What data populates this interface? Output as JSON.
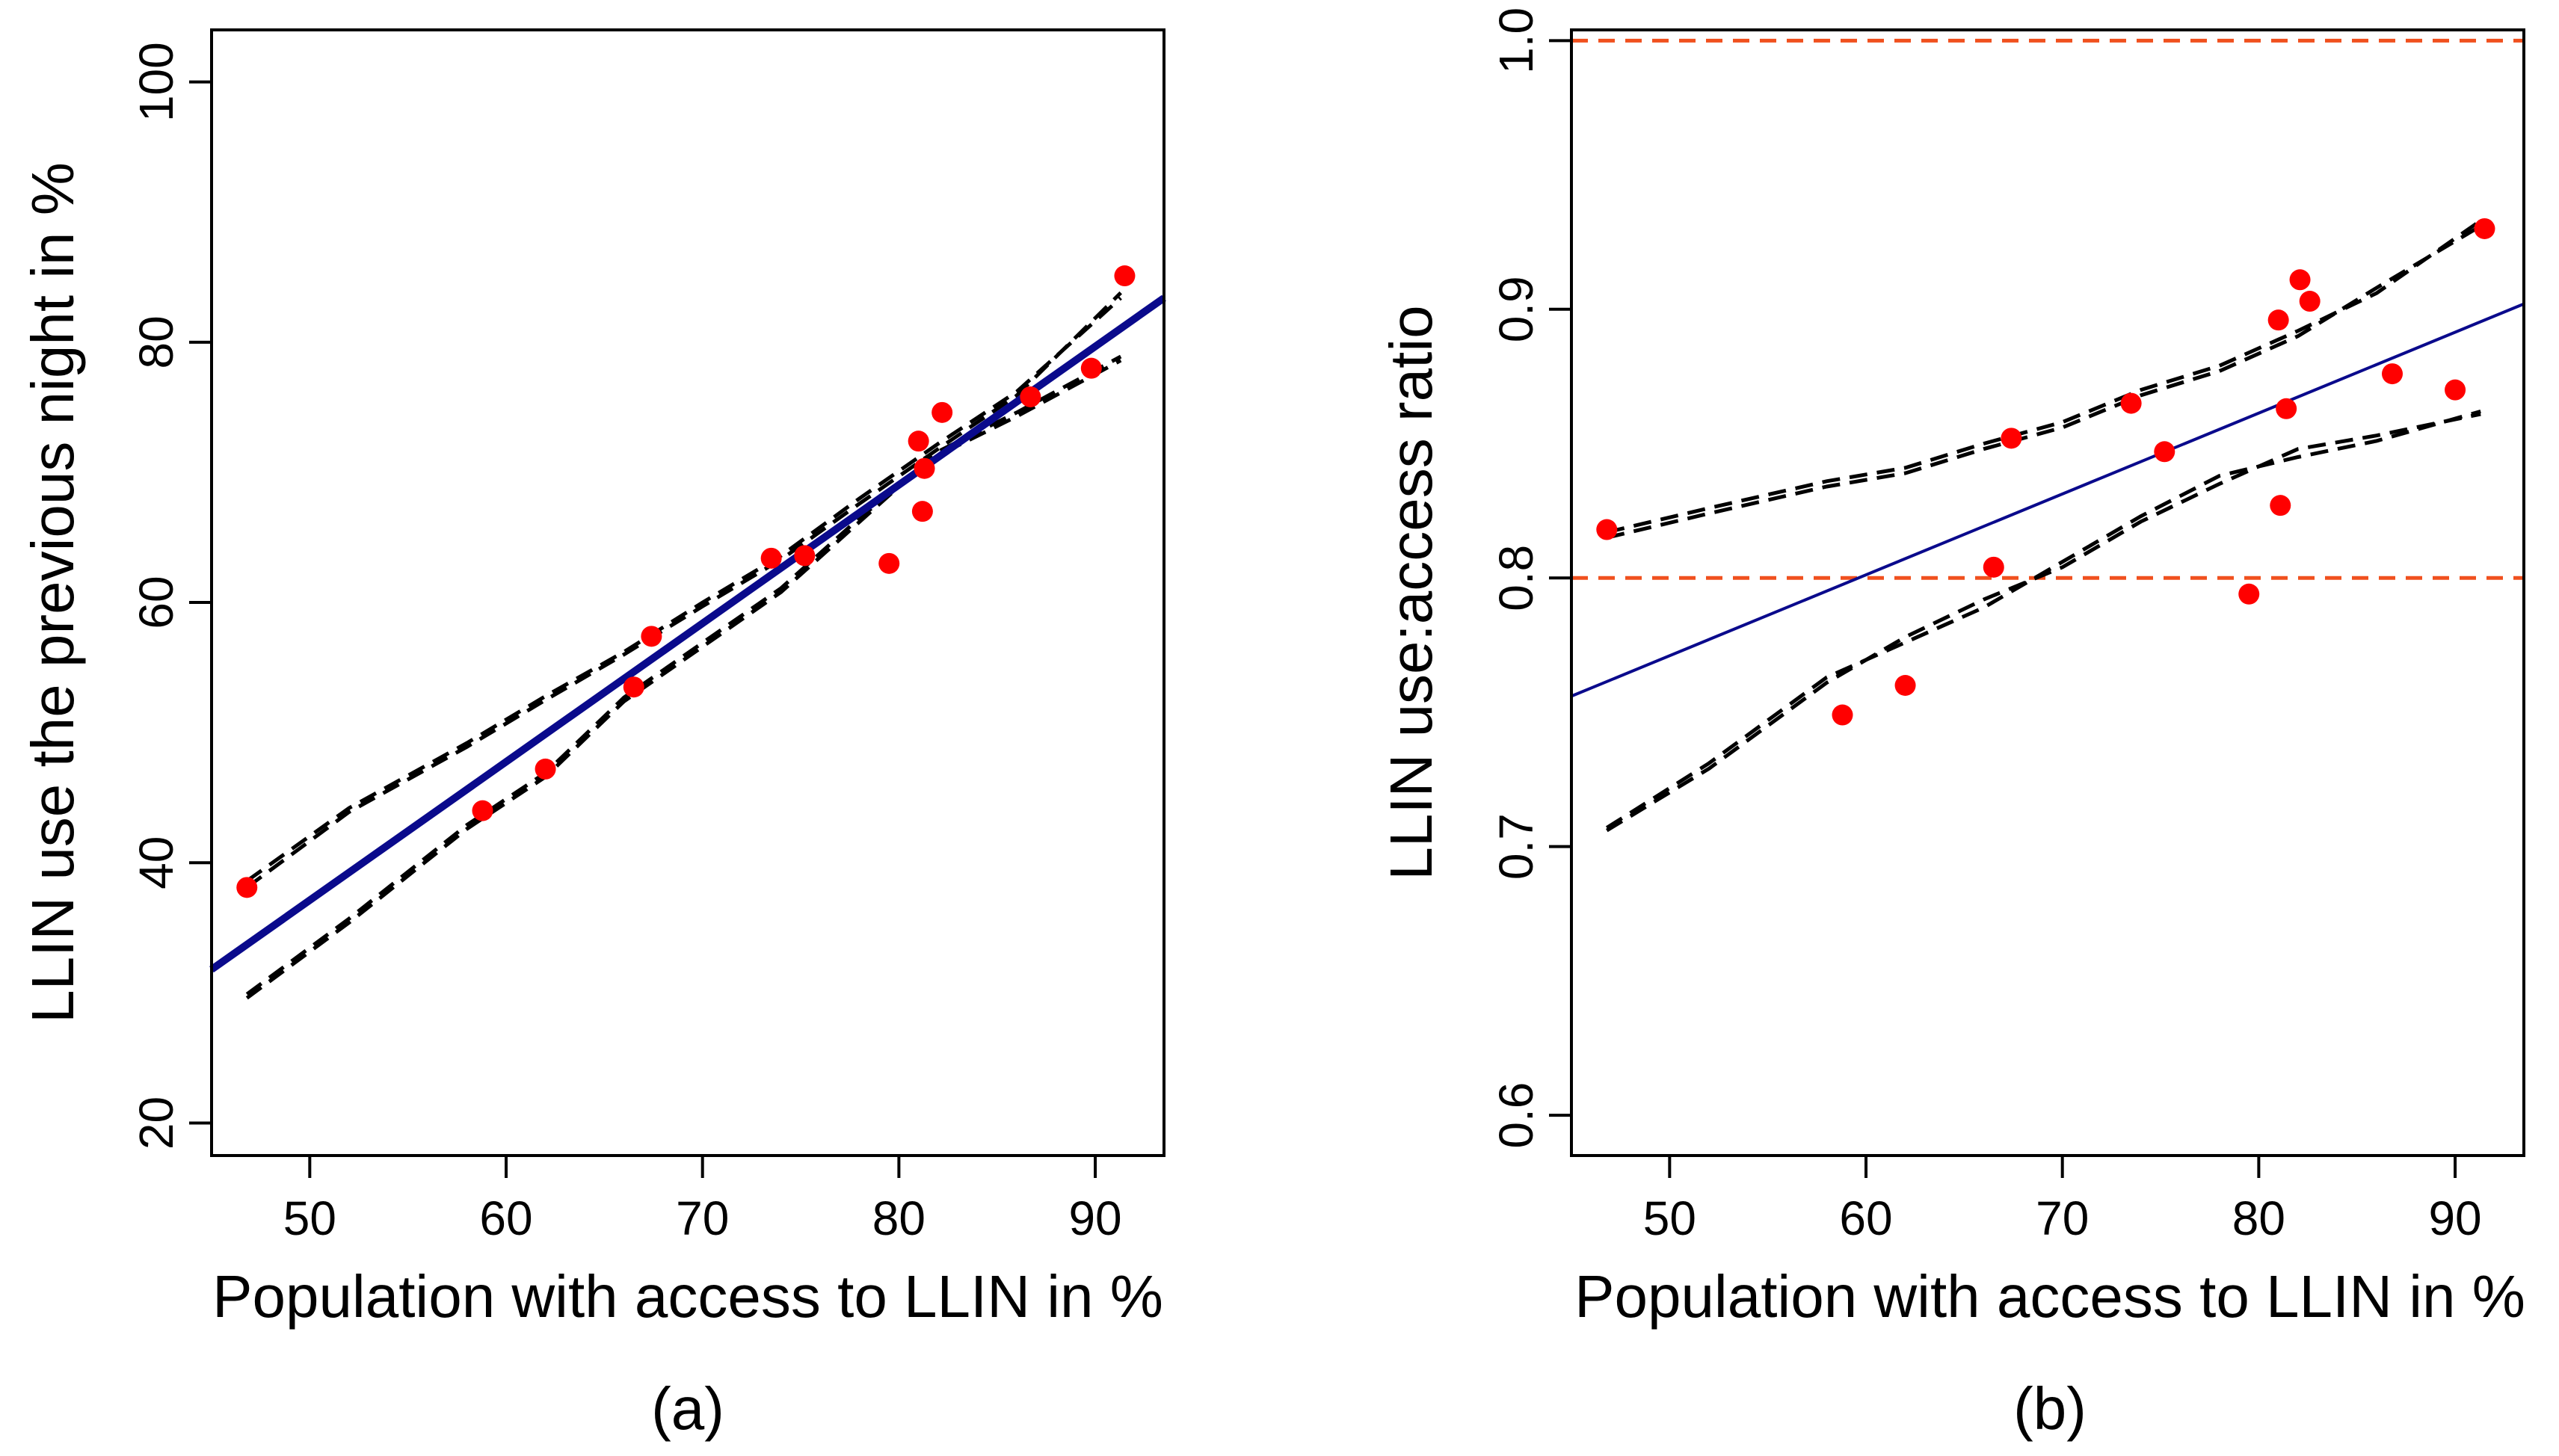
{
  "colors": {
    "points": "#ff0000",
    "fit_line": "#0a0a8c",
    "confidence_band": "#000000",
    "reference_line": "#f0501e",
    "axes": "#000000"
  },
  "chart_data": [
    {
      "type": "scatter",
      "panel_label": "(a)",
      "xlabel": "Population with access to LLIN in %",
      "ylabel": "LLIN use the previous night in %",
      "xlim": [
        45,
        93.5
      ],
      "ylim": [
        17.5,
        104
      ],
      "xticks": [
        50,
        60,
        70,
        80,
        90
      ],
      "yticks": [
        20,
        40,
        60,
        80,
        100
      ],
      "x_tick_labels": [
        "50",
        "60",
        "70",
        "80",
        "90"
      ],
      "y_tick_labels": [
        "20",
        "40",
        "60",
        "80",
        "100"
      ],
      "points": [
        {
          "x": 46.8,
          "y": 38.1
        },
        {
          "x": 58.8,
          "y": 44.0
        },
        {
          "x": 62.0,
          "y": 47.2
        },
        {
          "x": 66.5,
          "y": 53.5
        },
        {
          "x": 67.4,
          "y": 57.4
        },
        {
          "x": 73.5,
          "y": 63.4
        },
        {
          "x": 75.2,
          "y": 63.6
        },
        {
          "x": 79.5,
          "y": 63.0
        },
        {
          "x": 81.0,
          "y": 72.4
        },
        {
          "x": 81.2,
          "y": 67.0
        },
        {
          "x": 81.3,
          "y": 70.3
        },
        {
          "x": 82.2,
          "y": 74.6
        },
        {
          "x": 86.7,
          "y": 75.8
        },
        {
          "x": 89.8,
          "y": 78.0
        },
        {
          "x": 91.5,
          "y": 85.1
        }
      ],
      "fit_line": {
        "x": [
          45,
          93.5
        ],
        "y": [
          31.8,
          83.4
        ]
      },
      "confidence_bands": [
        {
          "x": [
            46.8,
            52,
            58,
            62,
            66,
            70,
            74,
            78,
            82,
            86,
            91.3
          ],
          "y": [
            38.6,
            44.2,
            49.2,
            52.8,
            56.2,
            60.0,
            63.6,
            68.0,
            72.2,
            76.2,
            83.4
          ]
        },
        {
          "x": [
            46.8,
            52,
            58,
            62,
            66,
            70,
            74,
            78,
            82,
            86,
            91.3
          ],
          "y": [
            38.1,
            43.9,
            48.9,
            52.5,
            56.0,
            59.7,
            63.3,
            67.6,
            71.8,
            75.9,
            83.8
          ]
        },
        {
          "x": [
            46.8,
            52,
            58,
            62,
            66,
            70,
            74,
            78,
            82,
            86,
            91.3
          ],
          "y": [
            29.6,
            35.4,
            42.6,
            46.6,
            52.4,
            56.6,
            60.8,
            66.2,
            71.6,
            74.6,
            78.9
          ]
        },
        {
          "x": [
            46.8,
            52,
            58,
            62,
            66,
            70,
            74,
            78,
            82,
            86,
            91.3
          ],
          "y": [
            29.9,
            35.7,
            42.9,
            46.9,
            52.7,
            56.9,
            61.1,
            66.5,
            71.3,
            74.3,
            78.6
          ]
        }
      ],
      "reference_lines": []
    },
    {
      "type": "scatter",
      "panel_label": "(b)",
      "xlabel": "Population with access to LLIN in %",
      "ylabel": "LLIN use:access ratio",
      "xlim": [
        45,
        93.5
      ],
      "ylim": [
        0.585,
        1.004
      ],
      "xticks": [
        50,
        60,
        70,
        80,
        90
      ],
      "yticks": [
        0.6,
        0.7,
        0.8,
        0.9,
        1.0
      ],
      "x_tick_labels": [
        "50",
        "60",
        "70",
        "80",
        "90"
      ],
      "y_tick_labels": [
        "0.6",
        "0.7",
        "0.8",
        "0.9",
        "1.0"
      ],
      "points": [
        {
          "x": 46.8,
          "y": 0.818
        },
        {
          "x": 58.8,
          "y": 0.749
        },
        {
          "x": 62.0,
          "y": 0.76
        },
        {
          "x": 66.5,
          "y": 0.804
        },
        {
          "x": 67.4,
          "y": 0.852
        },
        {
          "x": 73.5,
          "y": 0.865
        },
        {
          "x": 75.2,
          "y": 0.847
        },
        {
          "x": 79.5,
          "y": 0.794
        },
        {
          "x": 81.0,
          "y": 0.896
        },
        {
          "x": 81.1,
          "y": 0.827
        },
        {
          "x": 81.4,
          "y": 0.863
        },
        {
          "x": 82.1,
          "y": 0.911
        },
        {
          "x": 82.6,
          "y": 0.903
        },
        {
          "x": 86.8,
          "y": 0.876
        },
        {
          "x": 90.0,
          "y": 0.87
        },
        {
          "x": 91.5,
          "y": 0.93
        }
      ],
      "fit_line": {
        "x": [
          45,
          93.5
        ],
        "y": [
          0.756,
          0.902
        ]
      },
      "confidence_bands": [
        {
          "x": [
            46.8,
            52,
            58,
            62,
            66,
            70,
            74,
            78,
            82,
            86,
            91.3
          ],
          "y": [
            0.817,
            0.826,
            0.836,
            0.841,
            0.85,
            0.858,
            0.87,
            0.879,
            0.892,
            0.906,
            0.933
          ]
        },
        {
          "x": [
            46.8,
            52,
            58,
            62,
            66,
            70,
            74,
            78,
            82,
            86,
            91.3
          ],
          "y": [
            0.815,
            0.824,
            0.834,
            0.839,
            0.848,
            0.856,
            0.868,
            0.877,
            0.89,
            0.908,
            0.931
          ]
        },
        {
          "x": [
            46.8,
            52,
            58,
            62,
            66,
            70,
            74,
            78,
            82,
            86,
            91.3
          ],
          "y": [
            0.707,
            0.731,
            0.763,
            0.776,
            0.789,
            0.806,
            0.823,
            0.838,
            0.845,
            0.851,
            0.862
          ]
        },
        {
          "x": [
            46.8,
            52,
            58,
            62,
            66,
            70,
            74,
            78,
            82,
            86,
            91.3
          ],
          "y": [
            0.706,
            0.729,
            0.761,
            0.778,
            0.792,
            0.804,
            0.821,
            0.835,
            0.848,
            0.853,
            0.861
          ]
        }
      ],
      "reference_lines": [
        {
          "y": 1.0
        },
        {
          "y": 0.8
        }
      ]
    }
  ]
}
